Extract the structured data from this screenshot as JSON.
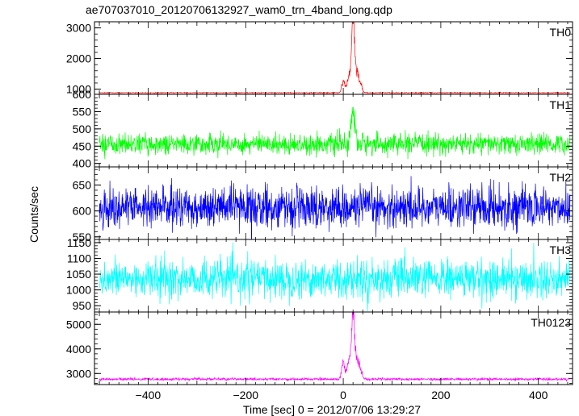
{
  "chart_data": {
    "type": "line",
    "title": "ae707037010_20120706132927_wam0_trn_4band_long.qdp",
    "xlabel": "Time [sec] 0 = 2012/07/06 13:29:27",
    "ylabel": "Counts/sec",
    "xlim": [
      -510,
      470
    ],
    "x_ticks": [
      -400,
      -200,
      0,
      200,
      400
    ],
    "x_tick_labels": [
      "−400",
      "−200",
      "0",
      "200",
      "400"
    ],
    "grid": false,
    "panels": [
      {
        "name": "TH0",
        "color": "#ff0000",
        "ylim": [
          830,
          3200
        ],
        "yticks": [
          1000,
          2000,
          3000
        ],
        "baseline": 880,
        "noise": 12,
        "peaks": [
          {
            "t": 0,
            "amp": 300,
            "w": 3
          },
          {
            "t": 12,
            "amp": 450,
            "w": 4
          },
          {
            "t": 20,
            "amp": 2200,
            "w": 3
          },
          {
            "t": 28,
            "amp": 600,
            "w": 6
          }
        ]
      },
      {
        "name": "TH1",
        "color": "#00ff00",
        "ylim": [
          390,
          600
        ],
        "yticks": [
          400,
          450,
          500,
          550,
          600
        ],
        "baseline": 456,
        "noise": 26,
        "peaks": [
          {
            "t": 20,
            "amp": 90,
            "w": 4
          }
        ]
      },
      {
        "name": "TH2",
        "color": "#0000ff",
        "ylim": [
          545,
          685
        ],
        "yticks": [
          550,
          600,
          650
        ],
        "baseline": 607,
        "noise": 35,
        "peaks": []
      },
      {
        "name": "TH3",
        "color": "#00ffff",
        "ylim": [
          930,
          1160
        ],
        "yticks": [
          950,
          1000,
          1050,
          1100,
          1150
        ],
        "baseline": 1035,
        "noise": 55,
        "peaks": []
      },
      {
        "name": "TH0123",
        "color": "#ff00ff",
        "ylim": [
          2550,
          5500
        ],
        "yticks": [
          3000,
          4000,
          5000
        ],
        "baseline": 2770,
        "noise": 45,
        "peaks": [
          {
            "t": 0,
            "amp": 550,
            "w": 3
          },
          {
            "t": 12,
            "amp": 650,
            "w": 4
          },
          {
            "t": 20,
            "amp": 2400,
            "w": 3
          },
          {
            "t": 28,
            "amp": 700,
            "w": 6
          }
        ]
      }
    ]
  }
}
